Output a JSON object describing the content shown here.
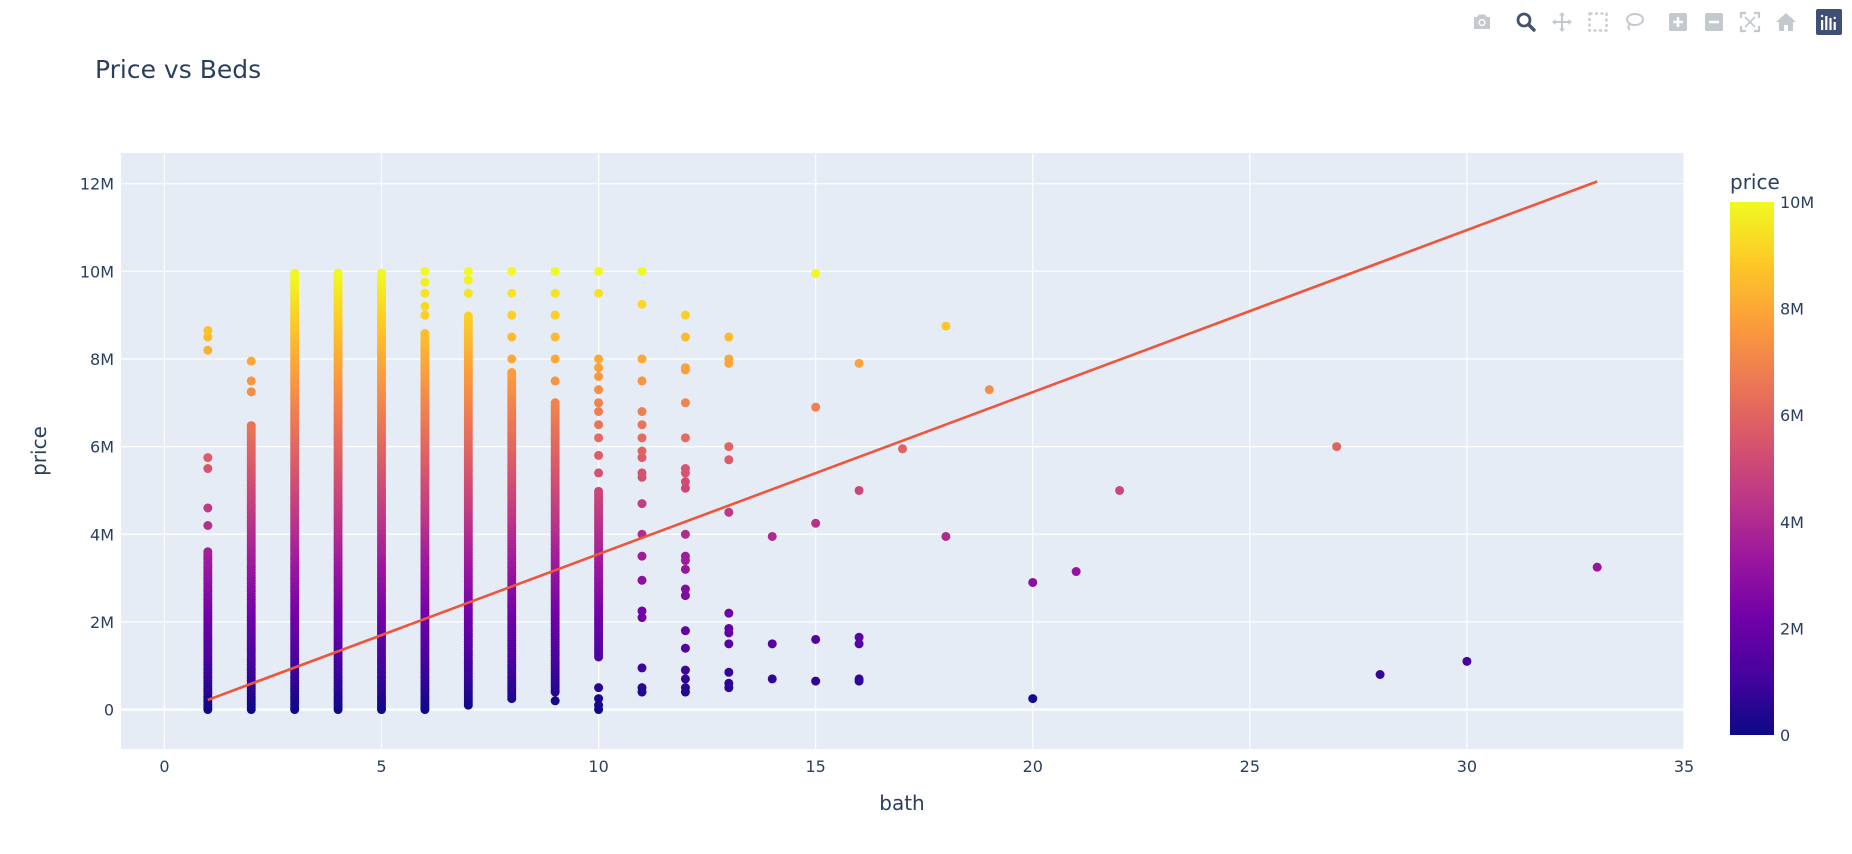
{
  "modebar": {
    "buttons": [
      {
        "icon": "camera-icon",
        "title": "Download plot as a png"
      },
      {
        "icon": "zoom-icon",
        "title": "Zoom"
      },
      {
        "icon": "pan-icon",
        "title": "Pan"
      },
      {
        "icon": "box-select-icon",
        "title": "Box Select"
      },
      {
        "icon": "lasso-select-icon",
        "title": "Lasso Select"
      },
      {
        "icon": "zoom-in-icon",
        "title": "Zoom in"
      },
      {
        "icon": "zoom-out-icon",
        "title": "Zoom out"
      },
      {
        "icon": "autoscale-icon",
        "title": "Autoscale"
      },
      {
        "icon": "reset-axes-icon",
        "title": "Reset axes"
      },
      {
        "icon": "plotly-logo-icon",
        "title": "Produced with Plotly"
      }
    ],
    "active_button": "zoom-icon"
  },
  "colors": {
    "plot_bg": "#E5ECF6",
    "grid": "#ffffff",
    "text": "#2a3f5f",
    "trendline": "#EF553B",
    "colorscale": [
      "#0d0887",
      "#46039f",
      "#7201a8",
      "#9c179e",
      "#bd3786",
      "#d8576b",
      "#ed7953",
      "#fb9f3a",
      "#fdca26",
      "#f0f921"
    ]
  },
  "chart_data": {
    "type": "scatter",
    "title": "Price vs Beds",
    "xlabel": "bath",
    "ylabel": "price",
    "xlim": [
      -1,
      35
    ],
    "ylim": [
      -900000,
      12700000
    ],
    "x_ticks": [
      0,
      5,
      10,
      15,
      20,
      25,
      30,
      35
    ],
    "x_tick_labels": [
      "0",
      "5",
      "10",
      "15",
      "20",
      "25",
      "30",
      "35"
    ],
    "y_ticks": [
      0,
      2000000,
      4000000,
      6000000,
      8000000,
      10000000,
      12000000
    ],
    "y_tick_labels": [
      "0",
      "2M",
      "4M",
      "6M",
      "8M",
      "10M",
      "12M"
    ],
    "grid": true,
    "legend": "none",
    "colorbar": {
      "title": "price",
      "range": [
        0,
        10000000
      ],
      "ticks": [
        0,
        2000000,
        4000000,
        6000000,
        8000000,
        10000000
      ],
      "tick_labels": [
        "0",
        "2M",
        "4M",
        "6M",
        "8M",
        "10M"
      ]
    },
    "dense_columns": [
      {
        "x": 1,
        "ranges": [
          [
            0,
            3600000
          ]
        ],
        "sparse": [
          4200000,
          4600000,
          5500000,
          5750000,
          8200000,
          8500000,
          8650000
        ]
      },
      {
        "x": 2,
        "ranges": [
          [
            0,
            6500000
          ]
        ],
        "sparse": [
          7250000,
          7500000,
          7950000
        ]
      },
      {
        "x": 3,
        "ranges": [
          [
            0,
            10000000
          ]
        ],
        "sparse": []
      },
      {
        "x": 4,
        "ranges": [
          [
            0,
            10000000
          ]
        ],
        "sparse": []
      },
      {
        "x": 5,
        "ranges": [
          [
            0,
            10000000
          ]
        ],
        "sparse": []
      },
      {
        "x": 6,
        "ranges": [
          [
            0,
            8600000
          ]
        ],
        "sparse": [
          9000000,
          9200000,
          9500000,
          9750000,
          10000000
        ]
      },
      {
        "x": 7,
        "ranges": [
          [
            100000,
            9000000
          ]
        ],
        "sparse": [
          9500000,
          9800000,
          10000000
        ]
      },
      {
        "x": 8,
        "ranges": [
          [
            250000,
            7700000
          ]
        ],
        "sparse": [
          8000000,
          8500000,
          9000000,
          9500000,
          10000000
        ]
      },
      {
        "x": 9,
        "ranges": [
          [
            400000,
            7000000
          ]
        ],
        "sparse": [
          7500000,
          8000000,
          8500000,
          9000000,
          9500000,
          10000000,
          200000
        ]
      },
      {
        "x": 10,
        "ranges": [
          [
            1200000,
            5000000
          ]
        ],
        "sparse": [
          0,
          100000,
          250000,
          500000,
          5400000,
          5800000,
          6200000,
          6500000,
          6800000,
          7000000,
          7300000,
          7600000,
          7800000,
          8000000,
          9500000,
          10000000
        ]
      }
    ],
    "points": [
      [
        11,
        400000
      ],
      [
        11,
        500000
      ],
      [
        11,
        950000
      ],
      [
        11,
        2100000
      ],
      [
        11,
        2250000
      ],
      [
        11,
        2950000
      ],
      [
        11,
        3500000
      ],
      [
        11,
        4000000
      ],
      [
        11,
        4700000
      ],
      [
        11,
        5300000
      ],
      [
        11,
        5400000
      ],
      [
        11,
        5750000
      ],
      [
        11,
        5900000
      ],
      [
        11,
        6200000
      ],
      [
        11,
        6500000
      ],
      [
        11,
        6800000
      ],
      [
        11,
        7500000
      ],
      [
        11,
        8000000
      ],
      [
        11,
        9250000
      ],
      [
        11,
        10000000
      ],
      [
        12,
        400000
      ],
      [
        12,
        500000
      ],
      [
        12,
        700000
      ],
      [
        12,
        900000
      ],
      [
        12,
        1400000
      ],
      [
        12,
        1800000
      ],
      [
        12,
        2600000
      ],
      [
        12,
        2750000
      ],
      [
        12,
        3200000
      ],
      [
        12,
        3400000
      ],
      [
        12,
        3500000
      ],
      [
        12,
        4000000
      ],
      [
        12,
        5050000
      ],
      [
        12,
        5200000
      ],
      [
        12,
        5400000
      ],
      [
        12,
        5500000
      ],
      [
        12,
        6200000
      ],
      [
        12,
        7000000
      ],
      [
        12,
        7750000
      ],
      [
        12,
        7800000
      ],
      [
        12,
        8500000
      ],
      [
        12,
        9000000
      ],
      [
        13,
        500000
      ],
      [
        13,
        600000
      ],
      [
        13,
        850000
      ],
      [
        13,
        1500000
      ],
      [
        13,
        1750000
      ],
      [
        13,
        1850000
      ],
      [
        13,
        2200000
      ],
      [
        13,
        4500000
      ],
      [
        13,
        5700000
      ],
      [
        13,
        6000000
      ],
      [
        13,
        7900000
      ],
      [
        13,
        8000000
      ],
      [
        13,
        8500000
      ],
      [
        14,
        700000
      ],
      [
        14,
        1500000
      ],
      [
        14,
        3950000
      ],
      [
        15,
        650000
      ],
      [
        15,
        1600000
      ],
      [
        15,
        4250000
      ],
      [
        15,
        6900000
      ],
      [
        15,
        9950000
      ],
      [
        16,
        650000
      ],
      [
        16,
        700000
      ],
      [
        16,
        1500000
      ],
      [
        16,
        1650000
      ],
      [
        16,
        5000000
      ],
      [
        16,
        7900000
      ],
      [
        17,
        5950000
      ],
      [
        18,
        3950000
      ],
      [
        18,
        8750000
      ],
      [
        19,
        7300000
      ],
      [
        20,
        250000
      ],
      [
        20,
        2900000
      ],
      [
        21,
        3150000
      ],
      [
        22,
        5000000
      ],
      [
        27,
        6000000
      ],
      [
        28,
        800000
      ],
      [
        30,
        1100000
      ],
      [
        33,
        3250000
      ]
    ],
    "trendline": {
      "name": "OLS trendline",
      "x": [
        1,
        33
      ],
      "y": [
        220000,
        12050000
      ]
    }
  }
}
